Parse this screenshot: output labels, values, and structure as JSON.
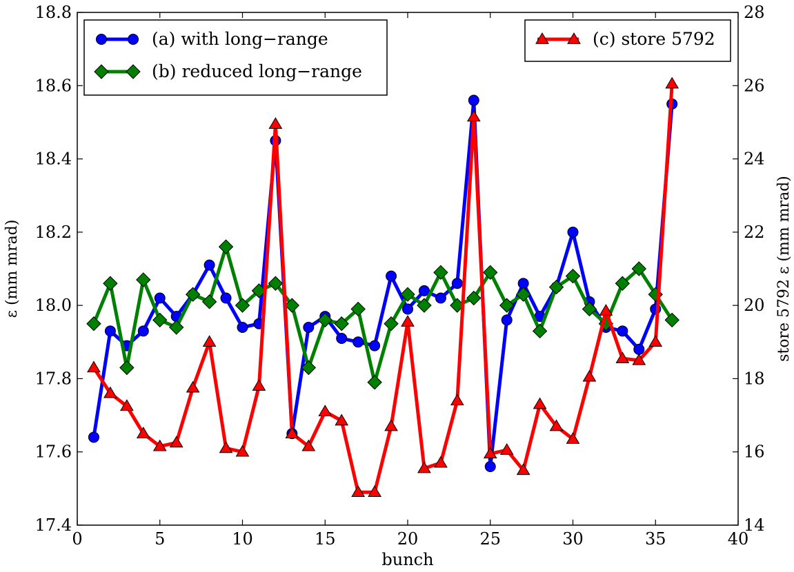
{
  "chart_data": {
    "type": "line",
    "title": "",
    "xlabel": "bunch",
    "ylabel": "ε (mm mrad)",
    "y2label": "store 5792 ε (mm mrad)",
    "xlim": [
      0,
      40
    ],
    "ylim": [
      17.4,
      18.8
    ],
    "y2lim": [
      14,
      28
    ],
    "x_ticks": [
      0,
      5,
      10,
      15,
      20,
      25,
      30,
      35,
      40
    ],
    "y_ticks": [
      "17.4",
      "17.6",
      "17.8",
      "18.0",
      "18.2",
      "18.4",
      "18.6",
      "18.8"
    ],
    "y2_ticks": [
      "14",
      "16",
      "18",
      "20",
      "22",
      "24",
      "26",
      "28"
    ],
    "grid": false,
    "x": [
      1,
      2,
      3,
      4,
      5,
      6,
      7,
      8,
      9,
      10,
      11,
      12,
      13,
      14,
      15,
      16,
      17,
      18,
      19,
      20,
      21,
      22,
      23,
      24,
      25,
      26,
      27,
      28,
      29,
      30,
      31,
      32,
      33,
      34,
      35,
      36
    ],
    "series": [
      {
        "name": "(a) with long−range",
        "axis": "left",
        "color": "#0000ff",
        "marker": "circle",
        "values": [
          17.64,
          17.93,
          17.89,
          17.93,
          18.02,
          17.97,
          18.03,
          18.11,
          18.02,
          17.94,
          17.95,
          18.45,
          17.65,
          17.94,
          17.97,
          17.91,
          17.9,
          17.89,
          18.08,
          17.99,
          18.04,
          18.02,
          18.06,
          18.56,
          17.56,
          17.96,
          18.06,
          17.97,
          18.05,
          18.2,
          18.01,
          17.94,
          17.93,
          17.88,
          17.99,
          18.55
        ]
      },
      {
        "name": "(b) reduced long−range",
        "axis": "left",
        "color": "#008000",
        "marker": "diamond",
        "values": [
          17.95,
          18.06,
          17.83,
          18.07,
          17.96,
          17.94,
          18.03,
          18.01,
          18.16,
          18.0,
          18.04,
          18.06,
          18.0,
          17.83,
          17.96,
          17.95,
          17.99,
          17.79,
          17.95,
          18.03,
          18.0,
          18.09,
          18.0,
          18.02,
          18.09,
          18.0,
          18.03,
          17.93,
          18.05,
          18.08,
          17.99,
          17.95,
          18.06,
          18.1,
          18.03,
          17.96
        ]
      },
      {
        "name": "(c) store 5792",
        "axis": "right",
        "color": "#ff0000",
        "marker": "triangle",
        "values": [
          18.3,
          17.6,
          17.25,
          16.5,
          16.15,
          16.25,
          17.75,
          19.0,
          16.1,
          16.0,
          17.8,
          24.95,
          16.5,
          16.15,
          17.1,
          16.85,
          14.9,
          14.9,
          16.7,
          19.55,
          15.55,
          15.7,
          17.4,
          25.15,
          15.95,
          16.05,
          15.5,
          17.3,
          16.7,
          16.35,
          18.05,
          19.85,
          18.55,
          18.5,
          19.0,
          26.05
        ]
      }
    ],
    "legend_left_placement": "top-left",
    "legend_right_placement": "top-right"
  }
}
